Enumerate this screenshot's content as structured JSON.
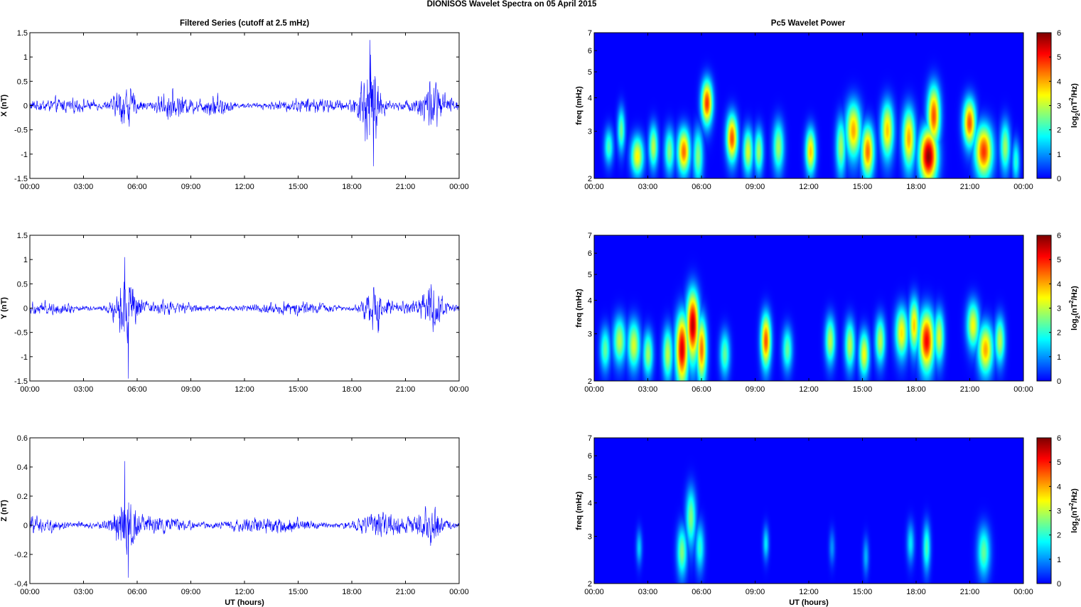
{
  "suptitle": "DIONISOS Wavelet Spectra on 05 April     2015",
  "left_title": "Filtered Series (cutoff at 2.5 mHz)",
  "right_title": "Pc5 Wavelet Power",
  "colors": {
    "trace": "#0000ff",
    "axes": "#000000",
    "background": "#ffffff"
  },
  "chart_data": [
    {
      "type": "line",
      "id": "x-series",
      "ylabel": "X (nT)",
      "xlabel": "",
      "x_ticks": [
        "00:00",
        "03:00",
        "06:00",
        "09:00",
        "12:00",
        "15:00",
        "18:00",
        "21:00",
        "00:00"
      ],
      "xlim_hours": [
        0,
        24
      ],
      "ylim": [
        -1.5,
        1.5
      ],
      "y_ticks": [
        -1.5,
        -1,
        -0.5,
        0,
        0.5,
        1,
        1.5
      ],
      "y_tick_labels": [
        "-1.5",
        "-1",
        "-0.5",
        "0",
        "0.5",
        "1",
        "1.5"
      ],
      "noise_level": 0.11,
      "activity_bursts_hours": [
        [
          5.3,
          0.35
        ],
        [
          7.8,
          0.15
        ],
        [
          10.5,
          0.15
        ],
        [
          19.0,
          0.8
        ],
        [
          22.5,
          0.35
        ]
      ],
      "extremes": {
        "max": 1.35,
        "min": -1.25
      }
    },
    {
      "type": "line",
      "id": "y-series",
      "ylabel": "Y (nT)",
      "xlabel": "",
      "x_ticks": [
        "00:00",
        "03:00",
        "06:00",
        "09:00",
        "12:00",
        "15:00",
        "18:00",
        "21:00",
        "00:00"
      ],
      "xlim_hours": [
        0,
        24
      ],
      "ylim": [
        -1.5,
        1.5
      ],
      "y_ticks": [
        -1.5,
        -1,
        -0.5,
        0,
        0.5,
        1,
        1.5
      ],
      "y_tick_labels": [
        "-1.5",
        "-1",
        "-0.5",
        "0",
        "0.5",
        "1",
        "1.5"
      ],
      "noise_level": 0.1,
      "activity_bursts_hours": [
        [
          5.3,
          0.6
        ],
        [
          19.2,
          0.35
        ],
        [
          22.5,
          0.3
        ]
      ],
      "extremes": {
        "max": 1.05,
        "min": -1.45
      }
    },
    {
      "type": "line",
      "id": "z-series",
      "ylabel": "Z (nT)",
      "xlabel": "UT (hours)",
      "x_ticks": [
        "00:00",
        "03:00",
        "06:00",
        "09:00",
        "12:00",
        "15:00",
        "18:00",
        "21:00",
        "00:00"
      ],
      "xlim_hours": [
        0,
        24
      ],
      "ylim": [
        -0.4,
        0.6
      ],
      "y_ticks": [
        -0.4,
        -0.2,
        0,
        0.2,
        0.4,
        0.6
      ],
      "y_tick_labels": [
        "-0.4",
        "-0.2",
        "0",
        "0.2",
        "0.4",
        "0.6"
      ],
      "noise_level": 0.045,
      "activity_bursts_hours": [
        [
          5.3,
          0.12
        ],
        [
          19.2,
          0.06
        ],
        [
          22.4,
          0.08
        ]
      ],
      "extremes": {
        "max": 0.44,
        "min": -0.36
      }
    },
    {
      "type": "heatmap",
      "id": "x-wavelet",
      "ylabel": "freq (mHz)",
      "xlabel": "",
      "x_ticks": [
        "00:00",
        "03:00",
        "06:00",
        "09:00",
        "12:00",
        "15:00",
        "18:00",
        "21:00",
        "00:00"
      ],
      "xlim_hours": [
        0,
        24
      ],
      "ylim_mhz": [
        2,
        7
      ],
      "y_scale": "log",
      "y_ticks": [
        2,
        3,
        4,
        5,
        6,
        7
      ],
      "colorbar": {
        "label": "log2(nT^2/Hz)",
        "label_base": "log",
        "label_sub": "2",
        "label_open": "(nT",
        "label_sup": "2",
        "label_close": "/Hz)",
        "ticks": [
          0,
          1,
          2,
          3,
          4,
          5,
          6
        ],
        "range": [
          0,
          6
        ],
        "colormap": "jet"
      },
      "blobs": [
        [
          0.8,
          2.6,
          0.18,
          0.25,
          2.2
        ],
        [
          1.5,
          3.0,
          0.15,
          0.35,
          2.5
        ],
        [
          2.4,
          2.4,
          0.25,
          0.25,
          3.5
        ],
        [
          3.3,
          2.6,
          0.18,
          0.3,
          3.0
        ],
        [
          4.2,
          2.5,
          0.2,
          0.3,
          2.6
        ],
        [
          5.0,
          2.5,
          0.25,
          0.3,
          4.4
        ],
        [
          5.8,
          2.4,
          0.2,
          0.35,
          2.6
        ],
        [
          6.3,
          3.8,
          0.22,
          0.45,
          4.8
        ],
        [
          7.7,
          2.8,
          0.22,
          0.35,
          4.6
        ],
        [
          8.6,
          2.5,
          0.2,
          0.3,
          3.2
        ],
        [
          9.2,
          2.5,
          0.18,
          0.3,
          2.8
        ],
        [
          10.3,
          2.6,
          0.22,
          0.35,
          2.8
        ],
        [
          12.1,
          2.5,
          0.2,
          0.3,
          3.8
        ],
        [
          13.8,
          2.6,
          0.2,
          0.4,
          2.8
        ],
        [
          14.5,
          3.0,
          0.3,
          0.45,
          4.0
        ],
        [
          15.3,
          2.5,
          0.25,
          0.35,
          4.4
        ],
        [
          16.4,
          3.0,
          0.25,
          0.45,
          3.8
        ],
        [
          17.6,
          2.8,
          0.25,
          0.45,
          4.0
        ],
        [
          18.7,
          2.4,
          0.35,
          0.35,
          5.9
        ],
        [
          19.0,
          3.4,
          0.25,
          0.55,
          4.6
        ],
        [
          21.0,
          3.2,
          0.25,
          0.4,
          4.6
        ],
        [
          21.8,
          2.5,
          0.35,
          0.35,
          4.8
        ],
        [
          23.0,
          2.6,
          0.2,
          0.35,
          2.8
        ],
        [
          23.6,
          2.3,
          0.15,
          0.25,
          2.0
        ]
      ]
    },
    {
      "type": "heatmap",
      "id": "y-wavelet",
      "ylabel": "freq (mHz)",
      "xlabel": "",
      "x_ticks": [
        "00:00",
        "03:00",
        "06:00",
        "09:00",
        "12:00",
        "15:00",
        "18:00",
        "21:00",
        "00:00"
      ],
      "xlim_hours": [
        0,
        24
      ],
      "ylim_mhz": [
        2,
        7
      ],
      "y_scale": "log",
      "y_ticks": [
        2,
        3,
        4,
        5,
        6,
        7
      ],
      "colorbar": {
        "label": "log2(nT^2/Hz)",
        "label_base": "log",
        "label_sub": "2",
        "label_open": "(nT",
        "label_sup": "2",
        "label_close": "/Hz)",
        "ticks": [
          0,
          1,
          2,
          3,
          4,
          5,
          6
        ],
        "range": [
          0,
          6
        ],
        "colormap": "jet"
      },
      "blobs": [
        [
          0.6,
          2.6,
          0.2,
          0.3,
          2.4
        ],
        [
          1.4,
          2.8,
          0.25,
          0.35,
          3.0
        ],
        [
          2.2,
          2.7,
          0.25,
          0.35,
          3.2
        ],
        [
          3.0,
          2.5,
          0.2,
          0.3,
          2.8
        ],
        [
          4.1,
          2.5,
          0.2,
          0.35,
          3.0
        ],
        [
          4.9,
          2.6,
          0.25,
          0.5,
          5.4
        ],
        [
          5.5,
          3.2,
          0.25,
          0.6,
          5.6
        ],
        [
          6.0,
          2.6,
          0.2,
          0.45,
          4.4
        ],
        [
          7.3,
          2.5,
          0.2,
          0.3,
          2.4
        ],
        [
          9.6,
          2.8,
          0.2,
          0.4,
          4.6
        ],
        [
          10.8,
          2.6,
          0.2,
          0.3,
          2.4
        ],
        [
          13.2,
          2.8,
          0.2,
          0.35,
          3.0
        ],
        [
          14.3,
          2.7,
          0.2,
          0.35,
          3.0
        ],
        [
          15.1,
          2.5,
          0.2,
          0.3,
          3.4
        ],
        [
          16.0,
          2.8,
          0.2,
          0.35,
          3.0
        ],
        [
          17.2,
          3.0,
          0.25,
          0.4,
          3.6
        ],
        [
          17.9,
          3.2,
          0.2,
          0.45,
          3.8
        ],
        [
          18.6,
          2.8,
          0.3,
          0.45,
          5.2
        ],
        [
          19.3,
          2.9,
          0.2,
          0.4,
          3.2
        ],
        [
          21.2,
          3.2,
          0.25,
          0.4,
          3.4
        ],
        [
          21.9,
          2.6,
          0.3,
          0.35,
          4.0
        ],
        [
          22.7,
          2.8,
          0.2,
          0.35,
          3.0
        ]
      ]
    },
    {
      "type": "heatmap",
      "id": "z-wavelet",
      "ylabel": "freq (mHz)",
      "xlabel": "UT (hours)",
      "x_ticks": [
        "00:00",
        "03:00",
        "06:00",
        "09:00",
        "12:00",
        "15:00",
        "18:00",
        "21:00",
        "00:00"
      ],
      "xlim_hours": [
        0,
        24
      ],
      "ylim_mhz": [
        2,
        7
      ],
      "y_scale": "log",
      "y_ticks": [
        2,
        3,
        4,
        5,
        6,
        7
      ],
      "colorbar": {
        "label": "log2(nT^2/Hz)",
        "label_base": "log",
        "label_sub": "2",
        "label_open": "(nT",
        "label_sup": "2",
        "label_close": "/Hz)",
        "ticks": [
          0,
          1,
          2,
          3,
          4,
          5,
          6
        ],
        "range": [
          0,
          6
        ],
        "colormap": "jet"
      },
      "blobs": [
        [
          2.5,
          2.7,
          0.12,
          0.25,
          1.4
        ],
        [
          4.9,
          2.6,
          0.2,
          0.35,
          2.6
        ],
        [
          5.4,
          3.5,
          0.2,
          0.55,
          2.6
        ],
        [
          5.9,
          2.7,
          0.18,
          0.35,
          2.0
        ],
        [
          9.6,
          2.8,
          0.12,
          0.25,
          1.6
        ],
        [
          13.3,
          2.7,
          0.12,
          0.25,
          1.0
        ],
        [
          15.2,
          2.5,
          0.12,
          0.25,
          1.2
        ],
        [
          17.7,
          2.8,
          0.15,
          0.3,
          1.6
        ],
        [
          18.6,
          2.7,
          0.15,
          0.35,
          2.2
        ],
        [
          21.8,
          2.6,
          0.25,
          0.35,
          2.4
        ]
      ]
    }
  ]
}
